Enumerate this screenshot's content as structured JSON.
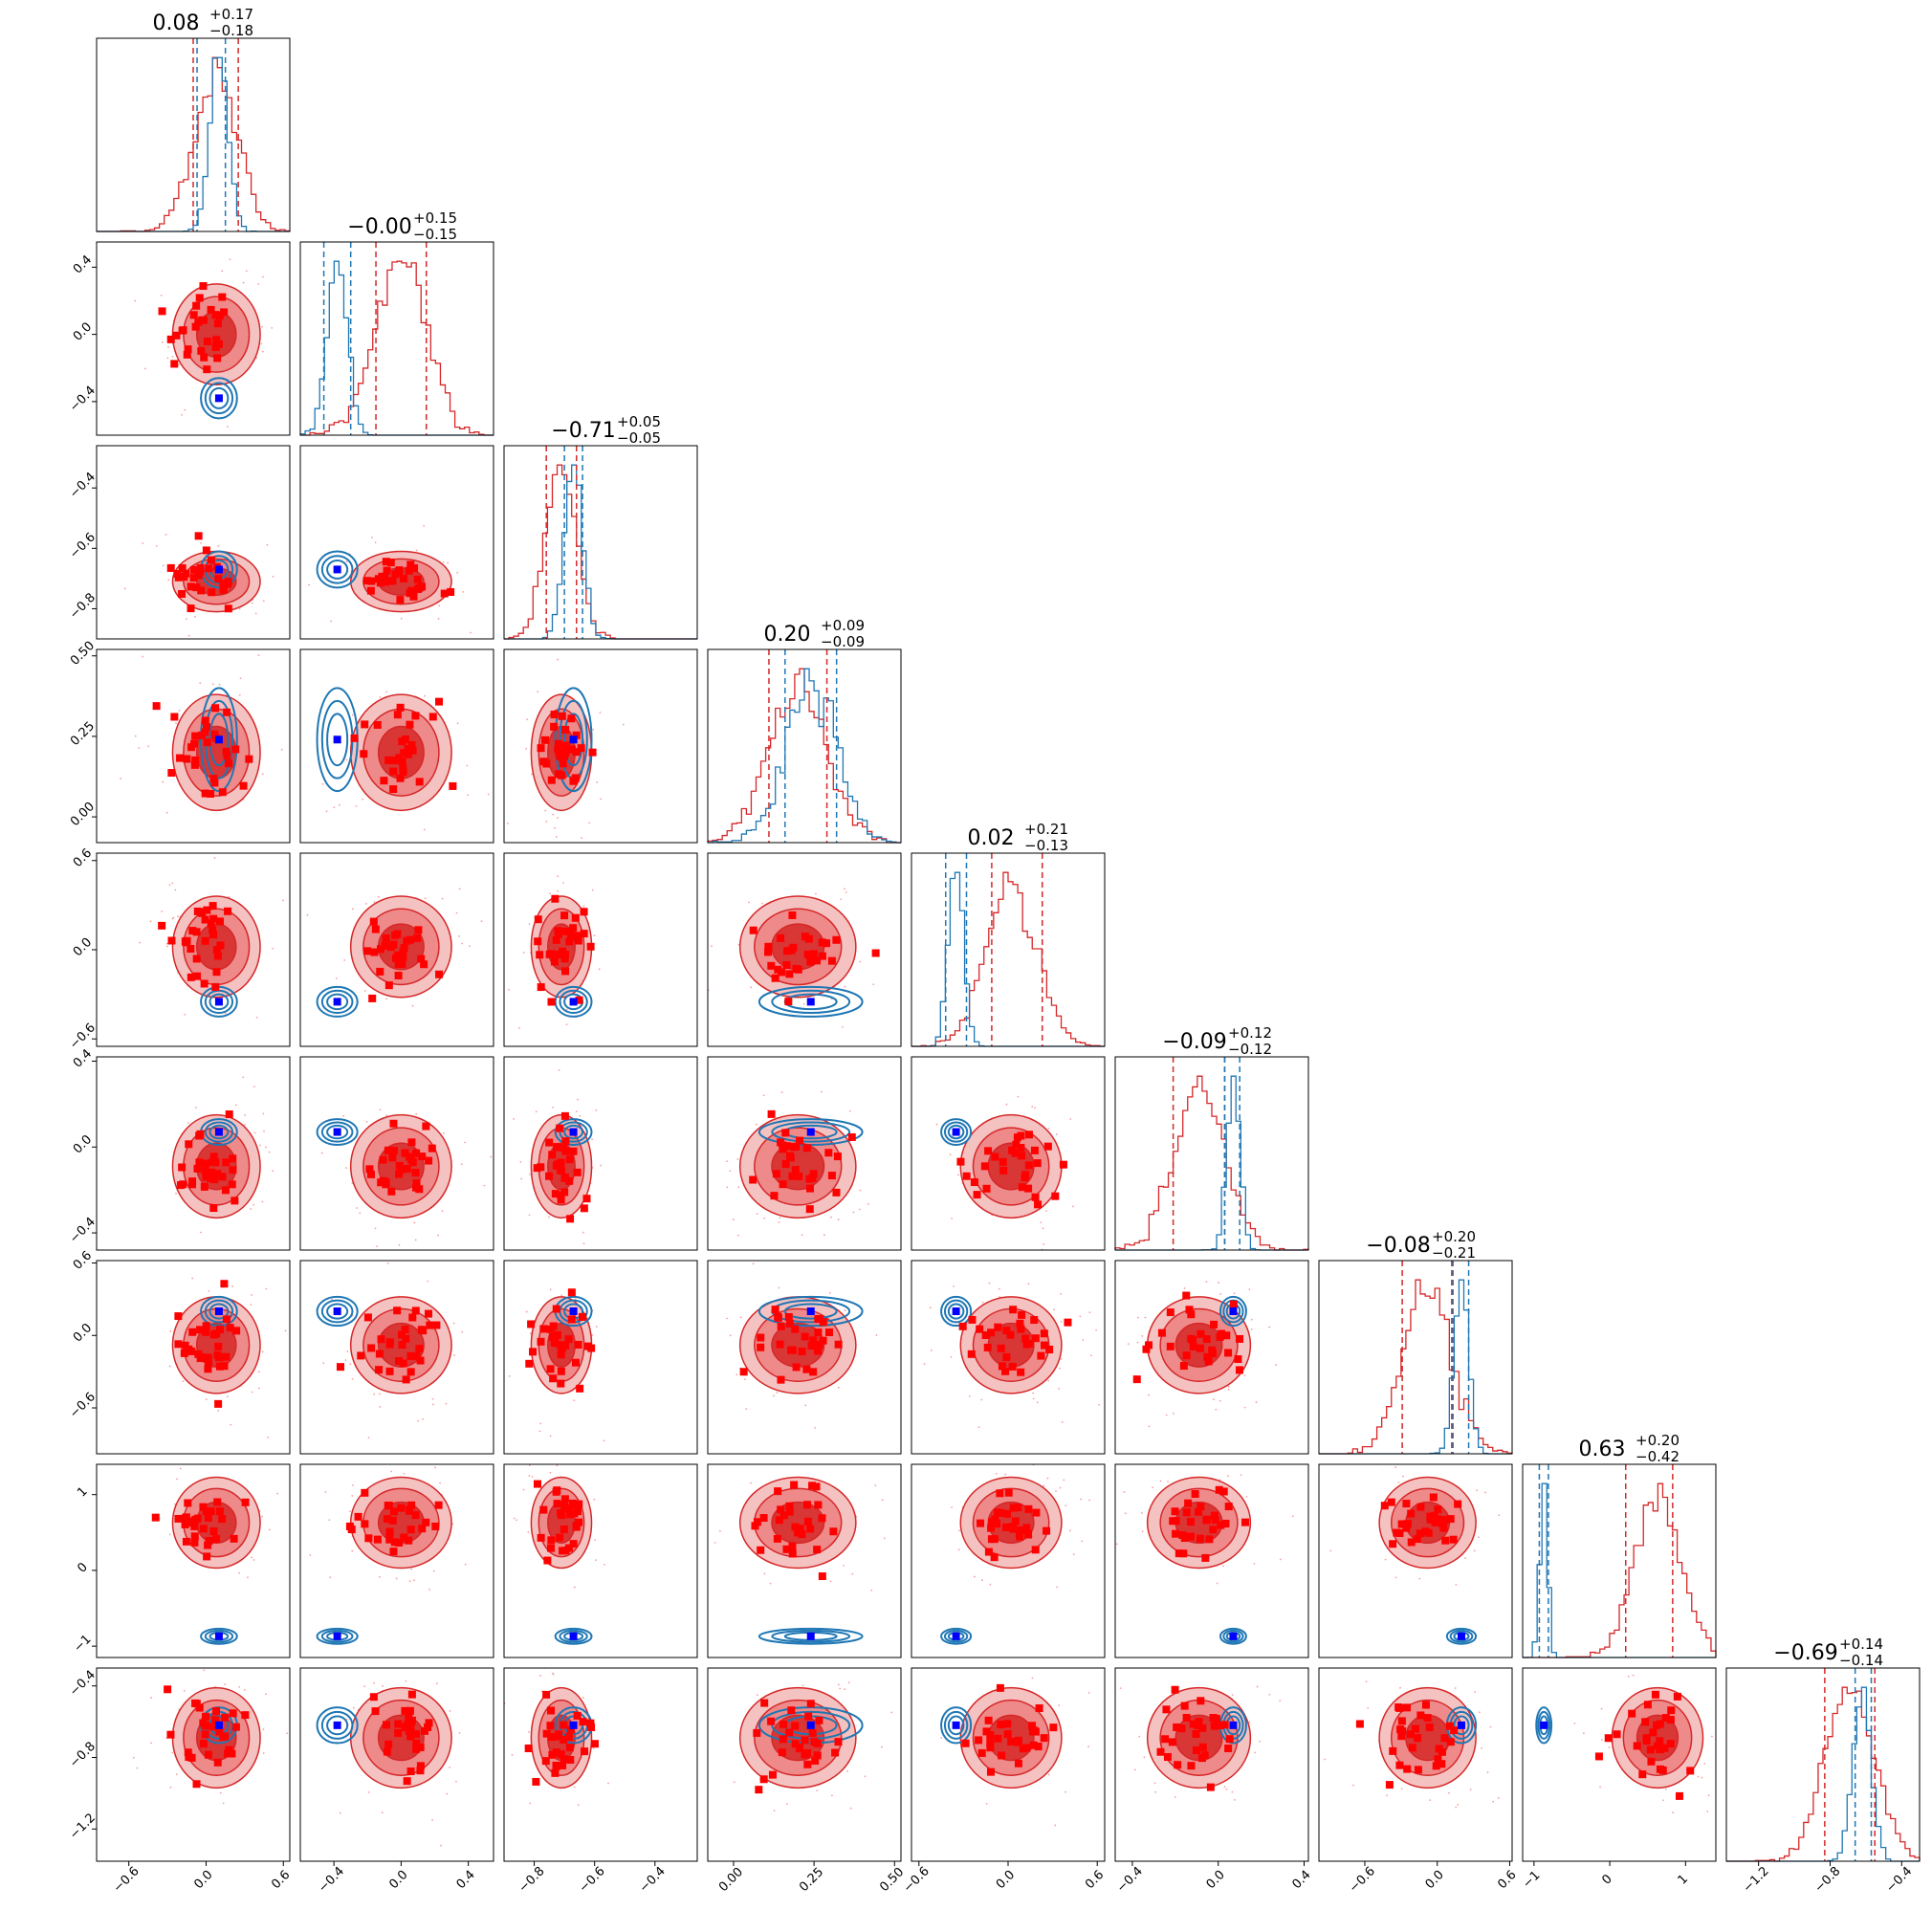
{
  "chart_data": {
    "type": "corner",
    "n_params": 9,
    "colors": {
      "posterior_a": "#d62728",
      "posterior_b": "#1f77b4",
      "truth_a": "#ff0000",
      "truth_b": "#0000ff"
    },
    "grid": false,
    "legend": "none",
    "titles": [
      {
        "median": "0.08",
        "plus": "+0.17",
        "minus": "−0.18"
      },
      {
        "median": "−0.00",
        "plus": "+0.15",
        "minus": "−0.15"
      },
      {
        "median": "−0.71",
        "plus": "+0.05",
        "minus": "−0.05"
      },
      {
        "median": "0.20",
        "plus": "+0.09",
        "minus": "−0.09"
      },
      {
        "median": "0.02",
        "plus": "+0.21",
        "minus": "−0.13"
      },
      {
        "median": "−0.09",
        "plus": "+0.12",
        "minus": "−0.12"
      },
      {
        "median": "−0.08",
        "plus": "+0.20",
        "minus": "−0.21"
      },
      {
        "median": "0.63",
        "plus": "+0.20",
        "minus": "−0.42"
      },
      {
        "median": "−0.69",
        "plus": "+0.14",
        "minus": "−0.14"
      }
    ],
    "params": [
      {
        "range": [
          -0.85,
          0.65
        ],
        "ticks": [
          -0.6,
          0.0,
          0.6
        ],
        "tick_labels": [
          "−0.6",
          "0.0",
          "0.6"
        ],
        "truth_a": 0.0,
        "truth_b": 0.05,
        "mean_a": 0.08,
        "sd_a": 0.17,
        "mean_b": 0.1,
        "sd_b": 0.07,
        "quantiles_a": [
          -0.1,
          0.25
        ],
        "quantiles_b": [
          -0.07,
          0.15
        ]
      },
      {
        "range": [
          -0.6,
          0.55
        ],
        "ticks": [
          -0.4,
          0.0,
          0.4
        ],
        "tick_labels": [
          "−0.4",
          "0.0",
          "0.4"
        ],
        "truth_a": 0.0,
        "truth_b": -0.37,
        "mean_a": 0.0,
        "sd_a": 0.15,
        "mean_b": -0.38,
        "sd_b": 0.06,
        "quantiles_a": [
          -0.15,
          0.15
        ],
        "quantiles_b": [
          -0.46,
          -0.3
        ]
      },
      {
        "range": [
          -0.9,
          -0.26
        ],
        "ticks": [
          -0.8,
          -0.6,
          -0.4
        ],
        "tick_labels": [
          "−0.8",
          "−0.6",
          "−0.4"
        ],
        "truth_a": -0.71,
        "truth_b": -0.68,
        "mean_a": -0.71,
        "sd_a": 0.05,
        "mean_b": -0.67,
        "sd_b": 0.03,
        "quantiles_a": [
          -0.76,
          -0.66
        ],
        "quantiles_b": [
          -0.7,
          -0.64
        ]
      },
      {
        "range": [
          -0.08,
          0.52
        ],
        "ticks": [
          0.0,
          0.25,
          0.5
        ],
        "tick_labels": [
          "0.00",
          "0.25",
          "0.50"
        ],
        "truth_a": 0.2,
        "truth_b": 0.24,
        "mean_a": 0.2,
        "sd_a": 0.09,
        "mean_b": 0.24,
        "sd_b": 0.08,
        "quantiles_a": [
          0.11,
          0.29
        ],
        "quantiles_b": [
          0.16,
          0.32
        ]
      },
      {
        "range": [
          -0.65,
          0.65
        ],
        "ticks": [
          -0.6,
          0.0,
          0.6
        ],
        "tick_labels": [
          "−0.6",
          "0.0",
          "0.6"
        ],
        "truth_a": 0.02,
        "truth_b": -0.35,
        "mean_a": 0.02,
        "sd_a": 0.17,
        "mean_b": -0.35,
        "sd_b": 0.05,
        "quantiles_a": [
          -0.11,
          0.23
        ],
        "quantiles_b": [
          -0.42,
          -0.28
        ]
      },
      {
        "range": [
          -0.48,
          0.42
        ],
        "ticks": [
          -0.4,
          0.0,
          0.4
        ],
        "tick_labels": [
          "−0.4",
          "0.0",
          "0.4"
        ],
        "truth_a": -0.09,
        "truth_b": 0.07,
        "mean_a": -0.09,
        "sd_a": 0.12,
        "mean_b": 0.07,
        "sd_b": 0.03,
        "quantiles_a": [
          -0.21,
          0.03
        ],
        "quantiles_b": [
          0.03,
          0.1
        ]
      },
      {
        "range": [
          -0.98,
          0.62
        ],
        "ticks": [
          -0.6,
          0.0,
          0.6
        ],
        "tick_labels": [
          "−0.6",
          "0.0",
          "0.6"
        ],
        "truth_a": -0.08,
        "truth_b": 0.2,
        "mean_a": -0.08,
        "sd_a": 0.2,
        "mean_b": 0.2,
        "sd_b": 0.06,
        "quantiles_a": [
          -0.29,
          0.12
        ],
        "quantiles_b": [
          0.13,
          0.26
        ]
      },
      {
        "range": [
          -1.15,
          1.4
        ],
        "ticks": [
          -1.0,
          0.0,
          1.0
        ],
        "tick_labels": [
          "−1",
          "0",
          "1"
        ],
        "truth_a": 0.63,
        "truth_b": -0.87,
        "mean_a": 0.63,
        "sd_a": 0.3,
        "mean_b": -0.87,
        "sd_b": 0.05,
        "quantiles_a": [
          0.21,
          0.83
        ],
        "quantiles_b": [
          -0.93,
          -0.81
        ]
      },
      {
        "range": [
          -1.38,
          -0.3
        ],
        "ticks": [
          -1.2,
          -0.8,
          -0.4
        ],
        "tick_labels": [
          "−1.2",
          "−0.8",
          "−0.4"
        ],
        "truth_a": -0.69,
        "truth_b": -0.62,
        "mean_a": -0.69,
        "sd_a": 0.14,
        "mean_b": -0.62,
        "sd_b": 0.05,
        "quantiles_a": [
          -0.83,
          -0.55
        ],
        "quantiles_b": [
          -0.66,
          -0.57
        ]
      }
    ]
  }
}
